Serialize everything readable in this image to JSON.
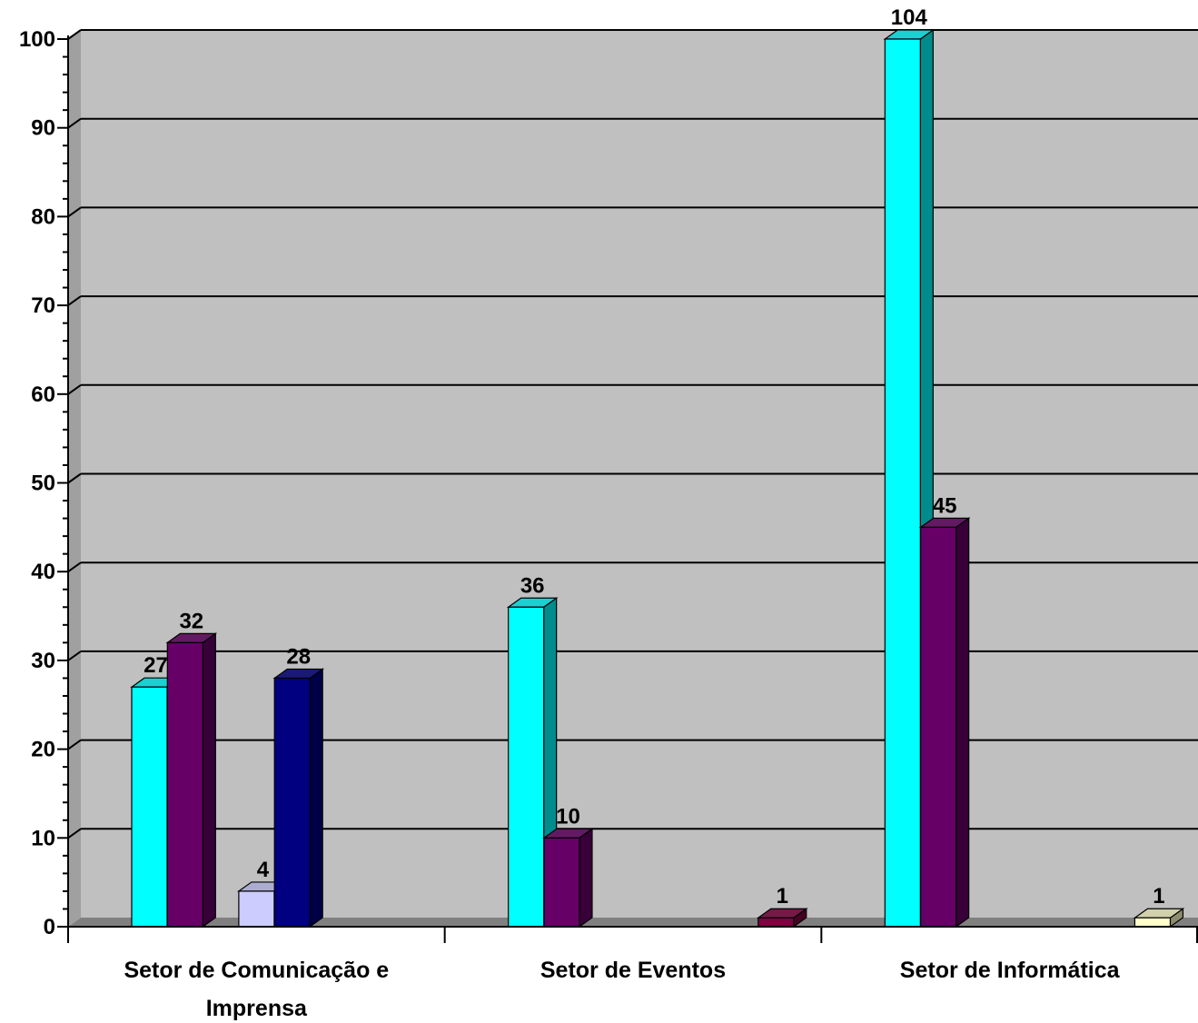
{
  "chart_data": {
    "type": "bar",
    "title": "",
    "xlabel": "",
    "ylabel": "",
    "ylim": [
      0,
      100
    ],
    "y_ticks": [
      "0",
      "10",
      "20",
      "30",
      "40",
      "50",
      "60",
      "70",
      "80",
      "90",
      "100"
    ],
    "grid": true,
    "legend": "none",
    "categories": [
      [
        "Setor de Comunicação e",
        "Imprensa"
      ],
      [
        "Setor de Eventos"
      ],
      [
        "Setor de Informática"
      ]
    ],
    "series": [
      {
        "color": "#00FFFF",
        "values": [
          27,
          36,
          104
        ],
        "labels": [
          "27",
          "36",
          "104"
        ]
      },
      {
        "color": "#660066",
        "values": [
          32,
          10,
          45
        ],
        "labels": [
          "32",
          "10",
          "45"
        ]
      },
      {
        "color": "#CCCCFF",
        "values": [
          4,
          null,
          null
        ],
        "labels": [
          "4",
          "",
          ""
        ]
      },
      {
        "color": "#000080",
        "values": [
          28,
          null,
          null
        ],
        "labels": [
          "28",
          "",
          ""
        ]
      },
      {
        "color": "#800040",
        "values": [
          null,
          1,
          null
        ],
        "labels": [
          "",
          "1",
          ""
        ]
      },
      {
        "color": "#FFFFCC",
        "values": [
          null,
          null,
          1
        ],
        "labels": [
          "",
          "",
          "1"
        ]
      }
    ],
    "bars": [
      {
        "category": 0,
        "slot": 0,
        "series": 0
      },
      {
        "category": 0,
        "slot": 1,
        "series": 1
      },
      {
        "category": 0,
        "slot": 3,
        "series": 2
      },
      {
        "category": 0,
        "slot": 4,
        "series": 3
      },
      {
        "category": 1,
        "slot": 0,
        "series": 0
      },
      {
        "category": 1,
        "slot": 1,
        "series": 1
      },
      {
        "category": 1,
        "slot": 7,
        "series": 4
      },
      {
        "category": 2,
        "slot": 0,
        "series": 0
      },
      {
        "category": 2,
        "slot": 1,
        "series": 1
      },
      {
        "category": 2,
        "slot": 7,
        "series": 5
      }
    ],
    "colors": {
      "plot_background": "#C0C0C0",
      "plot_wall": "#A0A0A0",
      "floor": "#808080",
      "gridline": "#000000"
    }
  }
}
